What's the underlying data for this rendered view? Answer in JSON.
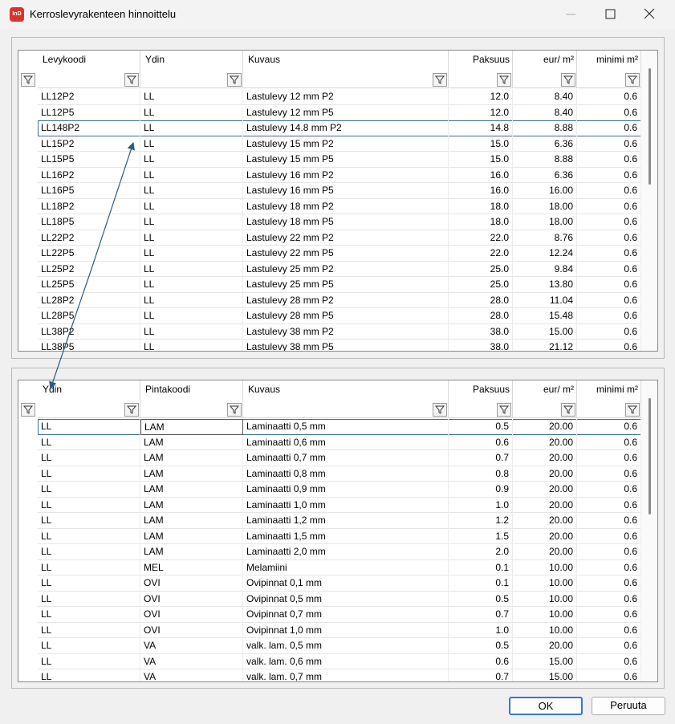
{
  "window": {
    "icon_text": "InD",
    "title": "Kerroslevyrakenteen hinnoittelu"
  },
  "top_table": {
    "columns": [
      "Levykoodi",
      "Ydin",
      "Kuvaus",
      "Paksuus",
      "eur/ m²",
      "minimi m²"
    ],
    "rows": [
      [
        "LL12P2",
        "LL",
        "Lastulevy 12 mm P2",
        "12.0",
        "8.40",
        "0.6"
      ],
      [
        "LL12P5",
        "LL",
        "Lastulevy 12 mm P5",
        "12.0",
        "8.40",
        "0.6"
      ],
      [
        "LL148P2",
        "LL",
        "Lastulevy 14.8 mm P2",
        "14.8",
        "8.88",
        "0.6"
      ],
      [
        "LL15P2",
        "LL",
        "Lastulevy 15 mm P2",
        "15.0",
        "6.36",
        "0.6"
      ],
      [
        "LL15P5",
        "LL",
        "Lastulevy 15 mm P5",
        "15.0",
        "8.88",
        "0.6"
      ],
      [
        "LL16P2",
        "LL",
        "Lastulevy 16 mm P2",
        "16.0",
        "6.36",
        "0.6"
      ],
      [
        "LL16P5",
        "LL",
        "Lastulevy 16 mm P5",
        "16.0",
        "16.00",
        "0.6"
      ],
      [
        "LL18P2",
        "LL",
        "Lastulevy 18 mm P2",
        "18.0",
        "18.00",
        "0.6"
      ],
      [
        "LL18P5",
        "LL",
        "Lastulevy 18 mm P5",
        "18.0",
        "18.00",
        "0.6"
      ],
      [
        "LL22P2",
        "LL",
        "Lastulevy 22 mm P2",
        "22.0",
        "8.76",
        "0.6"
      ],
      [
        "LL22P5",
        "LL",
        "Lastulevy 22 mm P5",
        "22.0",
        "12.24",
        "0.6"
      ],
      [
        "LL25P2",
        "LL",
        "Lastulevy 25 mm P2",
        "25.0",
        "9.84",
        "0.6"
      ],
      [
        "LL25P5",
        "LL",
        "Lastulevy 25 mm P5",
        "25.0",
        "13.80",
        "0.6"
      ],
      [
        "LL28P2",
        "LL",
        "Lastulevy 28 mm P2",
        "28.0",
        "11.04",
        "0.6"
      ],
      [
        "LL28P5",
        "LL",
        "Lastulevy 28 mm P5",
        "28.0",
        "15.48",
        "0.6"
      ],
      [
        "LL38P2",
        "LL",
        "Lastulevy 38 mm P2",
        "38.0",
        "15.00",
        "0.6"
      ],
      [
        "LL38P5",
        "LL",
        "Lastulevy 38 mm P5",
        "38.0",
        "21.12",
        "0.6"
      ]
    ]
  },
  "bottom_table": {
    "columns": [
      "Ydin",
      "Pintakoodi",
      "Kuvaus",
      "Paksuus",
      "eur/ m²",
      "minimi m²"
    ],
    "rows": [
      [
        "LL",
        "LAM",
        "Laminaatti 0,5 mm",
        "0.5",
        "20.00",
        "0.6"
      ],
      [
        "LL",
        "LAM",
        "Laminaatti 0,6 mm",
        "0.6",
        "20.00",
        "0.6"
      ],
      [
        "LL",
        "LAM",
        "Laminaatti 0,7 mm",
        "0.7",
        "20.00",
        "0.6"
      ],
      [
        "LL",
        "LAM",
        "Laminaatti 0,8 mm",
        "0.8",
        "20.00",
        "0.6"
      ],
      [
        "LL",
        "LAM",
        "Laminaatti 0,9 mm",
        "0.9",
        "20.00",
        "0.6"
      ],
      [
        "LL",
        "LAM",
        "Laminaatti 1,0 mm",
        "1.0",
        "20.00",
        "0.6"
      ],
      [
        "LL",
        "LAM",
        "Laminaatti 1,2 mm",
        "1.2",
        "20.00",
        "0.6"
      ],
      [
        "LL",
        "LAM",
        "Laminaatti 1,5 mm",
        "1.5",
        "20.00",
        "0.6"
      ],
      [
        "LL",
        "LAM",
        "Laminaatti 2,0 mm",
        "2.0",
        "20.00",
        "0.6"
      ],
      [
        "LL",
        "MEL",
        "Melamiini",
        "0.1",
        "10.00",
        "0.6"
      ],
      [
        "LL",
        "OVI",
        "Ovipinnat 0,1 mm",
        "0.1",
        "10.00",
        "0.6"
      ],
      [
        "LL",
        "OVI",
        "Ovipinnat 0,5 mm",
        "0.5",
        "10.00",
        "0.6"
      ],
      [
        "LL",
        "OVI",
        "Ovipinnat 0,7 mm",
        "0.7",
        "10.00",
        "0.6"
      ],
      [
        "LL",
        "OVI",
        "Ovipinnat 1,0  mm",
        "1.0",
        "10.00",
        "0.6"
      ],
      [
        "LL",
        "VA",
        "valk. lam. 0,5 mm",
        "0.5",
        "20.00",
        "0.6"
      ],
      [
        "LL",
        "VA",
        "valk. lam. 0,6 mm",
        "0.6",
        "15.00",
        "0.6"
      ],
      [
        "LL",
        "VA",
        "valk. lam. 0,7 mm",
        "0.7",
        "15.00",
        "0.6"
      ]
    ]
  },
  "buttons": {
    "ok": "OK",
    "cancel": "Peruuta"
  }
}
